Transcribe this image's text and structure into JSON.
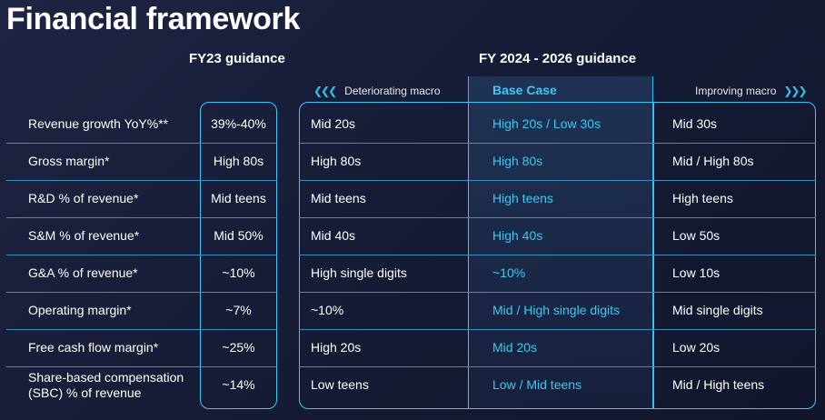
{
  "title": "Financial framework",
  "fy23": {
    "heading": "FY23 guidance"
  },
  "fy24": {
    "heading": "FY 2024 - 2026 guidance",
    "deteriorating": {
      "label": "Deteriorating macro",
      "icon": "chevrons-left-icon"
    },
    "base": {
      "label": "Base Case"
    },
    "improving": {
      "label": "Improving macro",
      "icon": "chevrons-right-icon"
    }
  },
  "colors": {
    "accent": "#3cc8f5",
    "background": "#171c36",
    "text": "#ffffff"
  },
  "rows": [
    {
      "label": "Revenue growth YoY%**",
      "fy23": "39%-40%",
      "deteriorating": "Mid 20s",
      "base": "High 20s / Low 30s",
      "improving": "Mid 30s"
    },
    {
      "label": "Gross margin*",
      "fy23": "High 80s",
      "deteriorating": "High 80s",
      "base": "High 80s",
      "improving": "Mid / High 80s"
    },
    {
      "label": "R&D % of revenue*",
      "fy23": "Mid teens",
      "deteriorating": "Mid teens",
      "base": "High teens",
      "improving": "High teens"
    },
    {
      "label": "S&M % of revenue*",
      "fy23": "Mid 50%",
      "deteriorating": "Mid 40s",
      "base": "High 40s",
      "improving": "Low 50s"
    },
    {
      "label": "G&A % of revenue*",
      "fy23": "~10%",
      "deteriorating": "High single digits",
      "base": "~10%",
      "improving": "Low 10s"
    },
    {
      "label": "Operating margin*",
      "fy23": "~7%",
      "deteriorating": "~10%",
      "base": "Mid / High single digits",
      "improving": "Mid single digits"
    },
    {
      "label": "Free cash flow margin*",
      "fy23": "~25%",
      "deteriorating": "High 20s",
      "base": "Mid 20s",
      "improving": "Low 20s"
    },
    {
      "label": "Share-based compensation (SBC) % of revenue",
      "fy23": "~14%",
      "deteriorating": "Low teens",
      "base": "Low / Mid teens",
      "improving": "Mid / High teens"
    }
  ]
}
